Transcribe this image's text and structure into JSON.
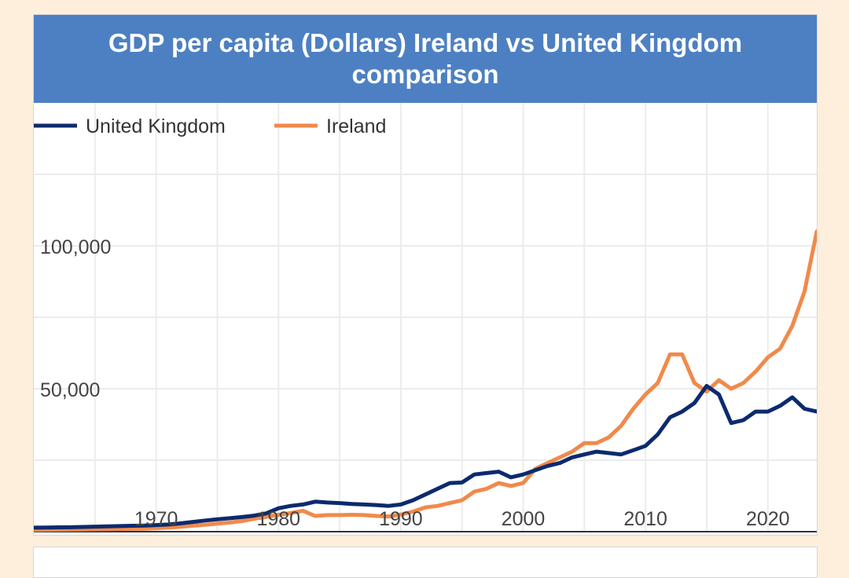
{
  "chart_data": {
    "type": "line",
    "title": "GDP per capita (Dollars) Ireland vs United Kingdom comparison",
    "xlabel": "",
    "ylabel": "",
    "xlim": [
      1960,
      2024
    ],
    "ylim": [
      0,
      150000
    ],
    "x_ticks": [
      "1970",
      "1980",
      "1990",
      "2000",
      "2010",
      "2020"
    ],
    "y_ticks": [
      "50,000",
      "100,000"
    ],
    "legend": "top-left",
    "colors": {
      "United Kingdom": "#0c2a6e",
      "Ireland": "#f08a4b"
    },
    "x": [
      1960,
      1961,
      1962,
      1963,
      1964,
      1965,
      1966,
      1967,
      1968,
      1969,
      1970,
      1971,
      1972,
      1973,
      1974,
      1975,
      1976,
      1977,
      1978,
      1979,
      1980,
      1981,
      1982,
      1983,
      1984,
      1985,
      1986,
      1987,
      1988,
      1989,
      1990,
      1991,
      1992,
      1993,
      1994,
      1995,
      1996,
      1997,
      1998,
      1999,
      2000,
      2001,
      2002,
      2003,
      2004,
      2005,
      2006,
      2007,
      2008,
      2009,
      2010,
      2011,
      2012,
      2013,
      2014,
      2015,
      2016,
      2017,
      2018,
      2019,
      2020,
      2021,
      2022,
      2023,
      2024
    ],
    "series": [
      {
        "name": "United Kingdom",
        "values": [
          1400,
          1450,
          1500,
          1550,
          1650,
          1750,
          1850,
          1950,
          2050,
          2150,
          2300,
          2500,
          2900,
          3400,
          3900,
          4300,
          4700,
          5100,
          5600,
          6400,
          8200,
          9000,
          9500,
          10500,
          10200,
          10000,
          9700,
          9500,
          9300,
          9000,
          9500,
          11000,
          13000,
          15000,
          17000,
          17200,
          20000,
          20500,
          21000,
          19000,
          20000,
          21500,
          23000,
          24000,
          26000,
          27000,
          28000,
          27500,
          27000,
          28500,
          30000,
          34000,
          40000,
          42000,
          45000,
          51000,
          48000,
          38000,
          39000,
          42000,
          42000,
          44000,
          47000,
          43000,
          42000
        ]
      },
      {
        "name": "Ireland",
        "values": [
          600,
          650,
          700,
          750,
          800,
          850,
          900,
          950,
          1000,
          1050,
          1200,
          1400,
          1700,
          2100,
          2400,
          2800,
          3200,
          3700,
          4500,
          5200,
          5900,
          6500,
          7300,
          5500,
          5800,
          5800,
          5900,
          5800,
          5500,
          5300,
          6000,
          7000,
          8500,
          9000,
          10000,
          11000,
          14000,
          15000,
          17000,
          16000,
          17000,
          22000,
          24000,
          26000,
          28000,
          31000,
          31000,
          33000,
          37000,
          43000,
          48000,
          52000,
          62000,
          62000,
          52000,
          49000,
          53000,
          50000,
          52000,
          56000,
          61000,
          64000,
          72000,
          84000,
          105000
        ]
      }
    ]
  },
  "colors": {
    "header_bg": "#4d80c2",
    "page_bg": "#fdefdc"
  }
}
